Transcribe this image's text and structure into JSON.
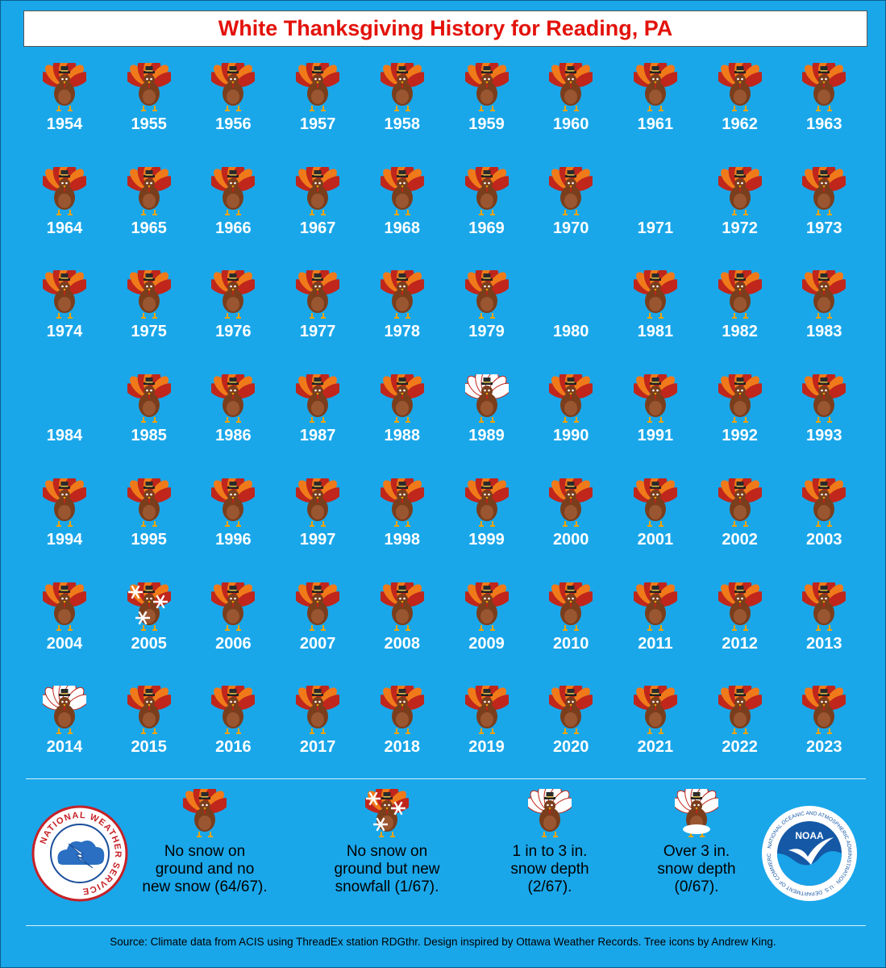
{
  "title": "White Thanksgiving History for Reading, PA",
  "years": [
    {
      "year": "1954",
      "category": "none"
    },
    {
      "year": "1955",
      "category": "none"
    },
    {
      "year": "1956",
      "category": "none"
    },
    {
      "year": "1957",
      "category": "none"
    },
    {
      "year": "1958",
      "category": "none"
    },
    {
      "year": "1959",
      "category": "none"
    },
    {
      "year": "1960",
      "category": "none"
    },
    {
      "year": "1961",
      "category": "none"
    },
    {
      "year": "1962",
      "category": "none"
    },
    {
      "year": "1963",
      "category": "none"
    },
    {
      "year": "1964",
      "category": "none"
    },
    {
      "year": "1965",
      "category": "none"
    },
    {
      "year": "1966",
      "category": "none"
    },
    {
      "year": "1967",
      "category": "none"
    },
    {
      "year": "1968",
      "category": "none"
    },
    {
      "year": "1969",
      "category": "none"
    },
    {
      "year": "1970",
      "category": "none"
    },
    {
      "year": "1971",
      "category": "missing"
    },
    {
      "year": "1972",
      "category": "none"
    },
    {
      "year": "1973",
      "category": "none"
    },
    {
      "year": "1974",
      "category": "none"
    },
    {
      "year": "1975",
      "category": "none"
    },
    {
      "year": "1976",
      "category": "none"
    },
    {
      "year": "1977",
      "category": "none"
    },
    {
      "year": "1978",
      "category": "none"
    },
    {
      "year": "1979",
      "category": "none"
    },
    {
      "year": "1980",
      "category": "missing"
    },
    {
      "year": "1981",
      "category": "none"
    },
    {
      "year": "1982",
      "category": "none"
    },
    {
      "year": "1983",
      "category": "none"
    },
    {
      "year": "1984",
      "category": "missing"
    },
    {
      "year": "1985",
      "category": "none"
    },
    {
      "year": "1986",
      "category": "none"
    },
    {
      "year": "1987",
      "category": "none"
    },
    {
      "year": "1988",
      "category": "none"
    },
    {
      "year": "1989",
      "category": "depth1to3"
    },
    {
      "year": "1990",
      "category": "none"
    },
    {
      "year": "1991",
      "category": "none"
    },
    {
      "year": "1992",
      "category": "none"
    },
    {
      "year": "1993",
      "category": "none"
    },
    {
      "year": "1994",
      "category": "none"
    },
    {
      "year": "1995",
      "category": "none"
    },
    {
      "year": "1996",
      "category": "none"
    },
    {
      "year": "1997",
      "category": "none"
    },
    {
      "year": "1998",
      "category": "none"
    },
    {
      "year": "1999",
      "category": "none"
    },
    {
      "year": "2000",
      "category": "none"
    },
    {
      "year": "2001",
      "category": "none"
    },
    {
      "year": "2002",
      "category": "none"
    },
    {
      "year": "2003",
      "category": "none"
    },
    {
      "year": "2004",
      "category": "none"
    },
    {
      "year": "2005",
      "category": "newsnow"
    },
    {
      "year": "2006",
      "category": "none"
    },
    {
      "year": "2007",
      "category": "none"
    },
    {
      "year": "2008",
      "category": "none"
    },
    {
      "year": "2009",
      "category": "none"
    },
    {
      "year": "2010",
      "category": "none"
    },
    {
      "year": "2011",
      "category": "none"
    },
    {
      "year": "2012",
      "category": "none"
    },
    {
      "year": "2013",
      "category": "none"
    },
    {
      "year": "2014",
      "category": "depth1to3"
    },
    {
      "year": "2015",
      "category": "none"
    },
    {
      "year": "2016",
      "category": "none"
    },
    {
      "year": "2017",
      "category": "none"
    },
    {
      "year": "2018",
      "category": "none"
    },
    {
      "year": "2019",
      "category": "none"
    },
    {
      "year": "2020",
      "category": "none"
    },
    {
      "year": "2021",
      "category": "none"
    },
    {
      "year": "2022",
      "category": "none"
    },
    {
      "year": "2023",
      "category": "none"
    }
  ],
  "legend": [
    {
      "category": "none",
      "text": "No snow on\nground and no\nnew snow (64/67)."
    },
    {
      "category": "newsnow",
      "text": "No snow on\nground but new\nsnowfall (1/67)."
    },
    {
      "category": "depth1to3",
      "text": "1 in to 3 in.\nsnow depth\n(2/67)."
    },
    {
      "category": "depth3plus",
      "text": "Over 3 in.\nsnow depth\n(0/67)."
    }
  ],
  "nws_logo_text": "NATIONAL WEATHER SERVICE",
  "noaa_logo_text": "NOAA",
  "noaa_ring_text": "NATIONAL OCEANIC AND ATMOSPHERIC ADMINISTRATION · U.S. DEPARTMENT OF COMMERCE",
  "source": "Source: Climate data from ACIS using ThreadEx station RDGthr. Design inspired by Ottawa Weather Records. Tree icons by Andrew King.",
  "colors": {
    "background": "#1aa7ea",
    "title_text": "#e3120b",
    "turkey_body": "#7a3e1d",
    "feather_orange": "#f07a1a",
    "feather_red": "#c0261b",
    "snow": "#ffffff"
  }
}
